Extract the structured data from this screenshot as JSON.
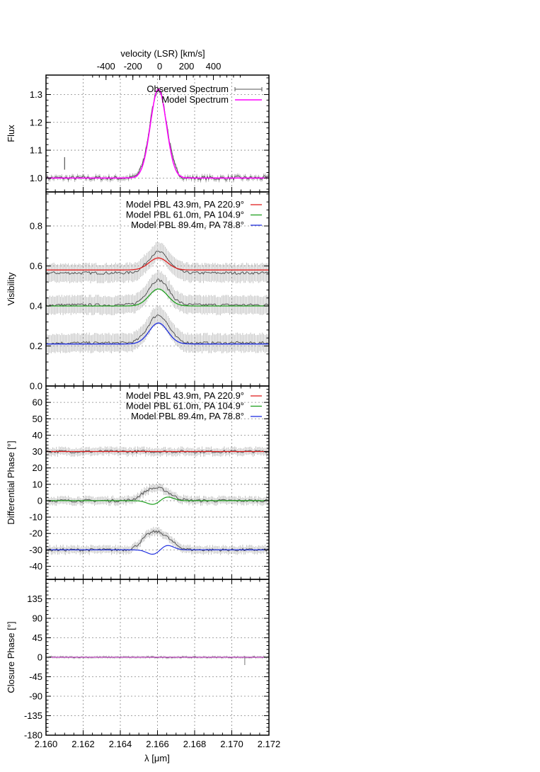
{
  "chart_data": [
    {
      "type": "line",
      "panel": "flux",
      "ylabel": "Flux",
      "top_axis_label": "velocity (LSR) [km/s]",
      "top_ticks": [
        "-400",
        "-200",
        "0",
        "200",
        "400"
      ],
      "top_tick_values": [
        -400,
        -200,
        0,
        200,
        400
      ],
      "xlim": [
        2.16,
        2.172
      ],
      "ylim": [
        0.95,
        1.37
      ],
      "yticks": [
        "1.0",
        "1.1",
        "1.2",
        "1.3"
      ],
      "ytick_values": [
        1.0,
        1.1,
        1.2,
        1.3
      ],
      "grid": true,
      "legend_position": "top-right",
      "series": [
        {
          "name": "Observed Spectrum",
          "color": "#555555",
          "kind": "observed",
          "baseline": 1.0,
          "peak": 1.32,
          "center": 2.16605,
          "sigma": 0.00045,
          "noise": 0.008,
          "err": 0.02
        },
        {
          "name": "Model Spectrum",
          "color": "#ff00ff",
          "kind": "model",
          "baseline": 1.0,
          "peak": 1.32,
          "center": 2.16605,
          "sigma": 0.00045
        }
      ]
    },
    {
      "type": "line",
      "panel": "visibility",
      "ylabel": "Visibility",
      "xlim": [
        2.16,
        2.172
      ],
      "ylim": [
        0.0,
        0.97
      ],
      "yticks": [
        "0.0",
        "0.2",
        "0.4",
        "0.6",
        "0.8"
      ],
      "ytick_values": [
        0.0,
        0.2,
        0.4,
        0.6,
        0.8
      ],
      "grid": true,
      "legend_position": "top-right",
      "series": [
        {
          "name": "Model PBL 43.9m, PA 220.9°",
          "color": "#e02020",
          "baseline": 0.58,
          "peak": 0.64,
          "obs_baseline": 0.565,
          "obs_peak": 0.67
        },
        {
          "name": "Model PBL 61.0m, PA 104.9°",
          "color": "#20a020",
          "baseline": 0.4,
          "peak": 0.485,
          "obs_baseline": 0.405,
          "obs_peak": 0.53
        },
        {
          "name": "Model PBL 89.4m, PA  78.8°",
          "color": "#2030e0",
          "baseline": 0.21,
          "peak": 0.315,
          "obs_baseline": 0.215,
          "obs_peak": 0.355
        }
      ]
    },
    {
      "type": "line",
      "panel": "differential_phase",
      "ylabel": "Differential Phase [°]",
      "xlim": [
        2.16,
        2.172
      ],
      "ylim": [
        -48,
        70
      ],
      "yticks": [
        "-40",
        "-30",
        "-20",
        "-10",
        "0",
        "10",
        "20",
        "30",
        "40",
        "50",
        "60"
      ],
      "ytick_values": [
        -40,
        -30,
        -20,
        -10,
        0,
        10,
        20,
        30,
        40,
        50,
        60
      ],
      "grid": true,
      "legend_position": "top-right",
      "series": [
        {
          "name": "Model PBL 43.9m, PA 220.9°",
          "color": "#e02020",
          "offset": 30,
          "model_amp": 0,
          "obs_amp": 0
        },
        {
          "name": "Model PBL 61.0m, PA 104.9°",
          "color": "#20a020",
          "offset": 0,
          "model_amp": 2.5,
          "obs_amp": 7
        },
        {
          "name": "Model PBL 89.4m, PA  78.8°",
          "color": "#2030e0",
          "offset": -30,
          "model_amp": 3,
          "obs_amp": 10
        }
      ]
    },
    {
      "type": "line",
      "panel": "closure_phase",
      "ylabel": "Closure Phase [°]",
      "xlabel": "λ [μm]",
      "xlim": [
        2.16,
        2.172
      ],
      "ylim": [
        -180,
        180
      ],
      "xticks": [
        "2.160",
        "2.162",
        "2.164",
        "2.166",
        "2.168",
        "2.170",
        "2.172"
      ],
      "xtick_values": [
        2.16,
        2.162,
        2.164,
        2.166,
        2.168,
        2.17,
        2.172
      ],
      "yticks": [
        "-180",
        "-135",
        "-90",
        "-45",
        "0",
        "45",
        "90",
        "135"
      ],
      "ytick_values": [
        -180,
        -135,
        -90,
        -45,
        0,
        45,
        90,
        135
      ],
      "grid": true,
      "series": [
        {
          "name": "",
          "color": "#cc33cc",
          "baseline": 0
        }
      ]
    }
  ]
}
